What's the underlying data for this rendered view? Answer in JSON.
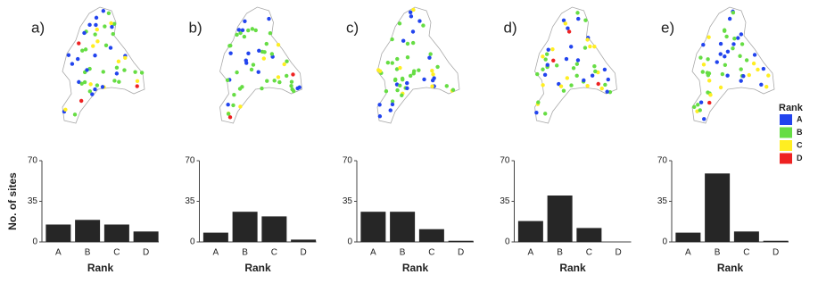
{
  "chart_data": [
    {
      "type": "bar",
      "panel": "a)",
      "categories": [
        "A",
        "B",
        "C",
        "D"
      ],
      "values": [
        15,
        19,
        15,
        9
      ],
      "color": "#262626",
      "ylim": [
        0,
        70
      ],
      "yticks": [
        0,
        35,
        70
      ],
      "xlabel": "Rank",
      "ylabel": "No. of sites"
    },
    {
      "type": "bar",
      "panel": "b)",
      "categories": [
        "A",
        "B",
        "C",
        "D"
      ],
      "values": [
        8,
        26,
        22,
        2
      ],
      "color": "#262626",
      "ylim": [
        0,
        70
      ],
      "yticks": [
        0,
        35,
        70
      ],
      "xlabel": "Rank"
    },
    {
      "type": "bar",
      "panel": "c)",
      "categories": [
        "A",
        "B",
        "C",
        "D"
      ],
      "values": [
        26,
        26,
        11,
        1
      ],
      "color": "#262626",
      "ylim": [
        0,
        70
      ],
      "yticks": [
        0,
        35,
        70
      ],
      "xlabel": "Rank"
    },
    {
      "type": "bar",
      "panel": "d)",
      "categories": [
        "A",
        "B",
        "C",
        "D"
      ],
      "values": [
        18,
        40,
        12,
        0
      ],
      "color": "#262626",
      "ylim": [
        0,
        70
      ],
      "yticks": [
        0,
        35,
        70
      ],
      "xlabel": "Rank"
    },
    {
      "type": "bar",
      "panel": "e)",
      "categories": [
        "A",
        "B",
        "C",
        "D"
      ],
      "values": [
        8,
        59,
        9,
        1
      ],
      "color": "#262626",
      "ylim": [
        0,
        70
      ],
      "yticks": [
        0,
        35,
        70
      ],
      "xlabel": "Rank"
    }
  ],
  "legend": {
    "title": "Rank",
    "items": [
      {
        "name": "A",
        "color": "#2244ee"
      },
      {
        "name": "B",
        "color": "#66dd44"
      },
      {
        "name": "C",
        "color": "#ffee22"
      },
      {
        "name": "D",
        "color": "#ee2222"
      }
    ]
  }
}
